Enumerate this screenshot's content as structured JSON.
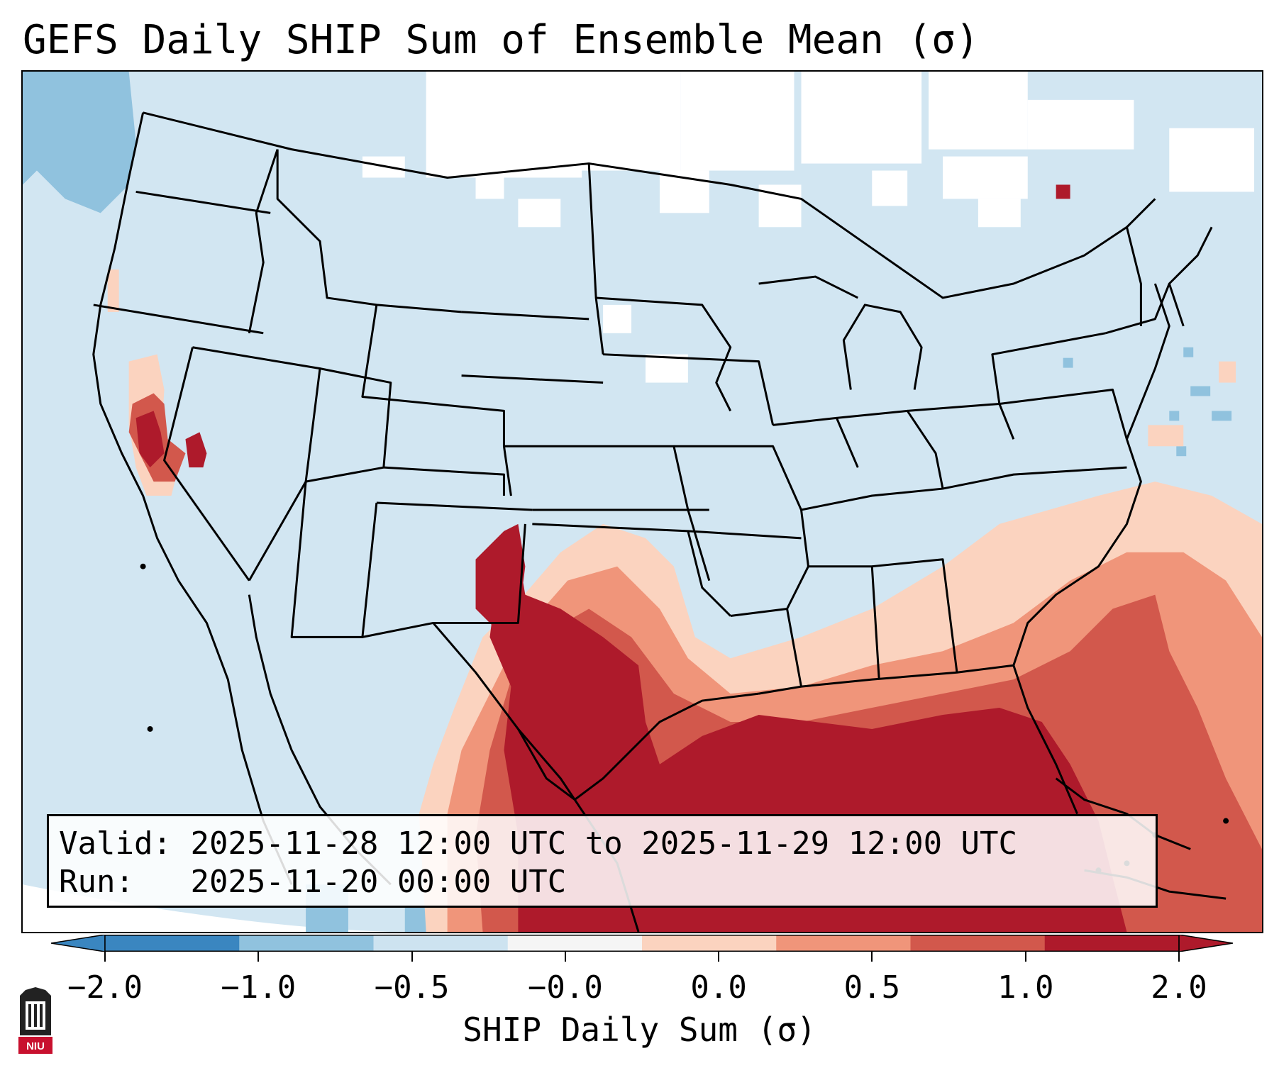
{
  "title": "GEFS Daily SHIP Sum of Ensemble Mean (σ)",
  "info": {
    "valid_label": "Valid:",
    "valid_value": "2025-11-28 12:00 UTC to 2025-11-29 12:00 UTC",
    "run_label": "Run:",
    "run_value": "2025-11-20 00:00 UTC"
  },
  "colorbar": {
    "label": "SHIP Daily Sum (σ)",
    "ticks": [
      "−2.0",
      "−1.0",
      "−0.5",
      "−0.0",
      "0.0",
      "0.5",
      "1.0",
      "2.0"
    ],
    "colors": [
      "#3a86c0",
      "#90c2de",
      "#cde3f0",
      "#f5f5f5",
      "#fbd3bf",
      "#f0957a",
      "#d2584c",
      "#ae1a2b"
    ]
  },
  "logo": {
    "text": "NIU"
  },
  "map": {
    "ocean_color": "#d2e6f2",
    "land_color": "#d2e6f2",
    "region": "Continental United States"
  }
}
